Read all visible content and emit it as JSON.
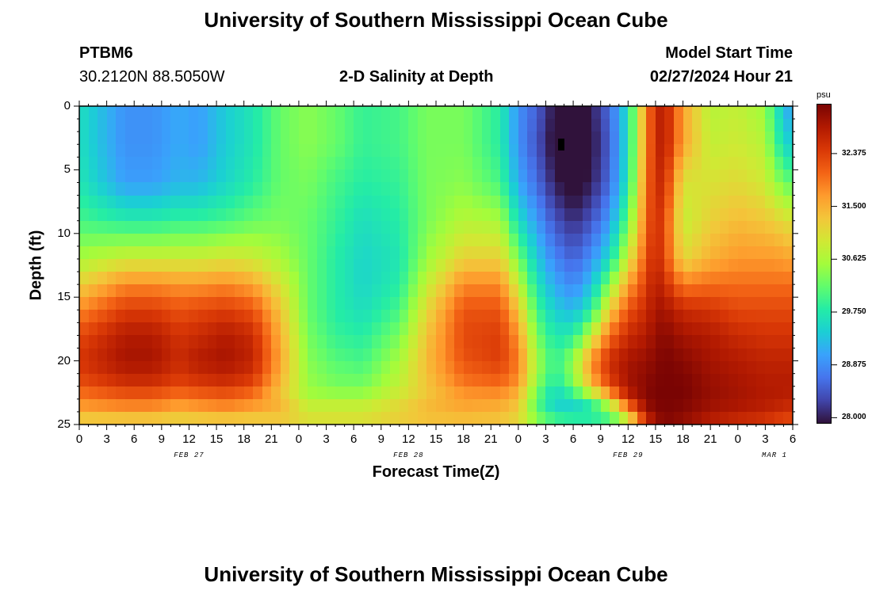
{
  "header": {
    "title_top": "University of Southern Mississippi Ocean Cube",
    "title_bottom": "University of Southern Mississippi Ocean Cube",
    "station_id": "PTBM6",
    "station_coords": "30.2120N  88.5050W",
    "plot_title": "2-D Salinity at Depth",
    "model_start_label": "Model Start Time",
    "model_start_value": "02/27/2024 Hour 21"
  },
  "chart_data": {
    "type": "heatmap",
    "title": "2-D Salinity at Depth",
    "xlabel": "Forecast Time(Z)",
    "ylabel": "Depth (ft)",
    "colorbar_unit": "psu",
    "x_range_hours": [
      0,
      78
    ],
    "y_range_ft": [
      0,
      25
    ],
    "y_ticks": [
      "0",
      "5",
      "10",
      "15",
      "20",
      "25"
    ],
    "x_tick_labels": [
      "0",
      "3",
      "6",
      "9",
      "12",
      "15",
      "18",
      "21",
      "0",
      "3",
      "6",
      "9",
      "12",
      "15",
      "18",
      "21",
      "0",
      "3",
      "6",
      "9",
      "12",
      "15",
      "18",
      "21",
      "0",
      "3",
      "6"
    ],
    "date_labels": [
      "FEB 27",
      "FEB 28",
      "FEB 29",
      "MAR 1"
    ],
    "date_label_hours": [
      12,
      36,
      60,
      76
    ],
    "colorbar_ticks": [
      "28.000",
      "28.875",
      "29.750",
      "30.625",
      "31.500",
      "32.375"
    ],
    "colorbar_tick_values": [
      28.0,
      28.875,
      29.75,
      30.625,
      31.5,
      32.375
    ],
    "colorbar_range": [
      27.9,
      33.2
    ],
    "colormap": [
      "#30123b",
      "#4145ab",
      "#4675ed",
      "#39a2fc",
      "#1bcfd4",
      "#24eca6",
      "#61fc6c",
      "#a4fc3b",
      "#d1e834",
      "#f3c63a",
      "#fe9b2d",
      "#f36315",
      "#d93806",
      "#b11901",
      "#7a0403"
    ],
    "grid_resolution": {
      "time_columns": 78,
      "depth_rows": 25
    },
    "profile_hours": [
      0,
      5,
      8,
      11,
      13,
      16,
      19,
      22,
      25,
      28,
      31,
      35,
      38,
      42,
      46,
      48,
      50,
      52,
      54,
      56,
      58,
      60,
      62,
      63,
      64,
      66,
      69,
      72,
      75,
      76,
      78
    ],
    "profile_depths_ft": [
      0,
      3,
      6,
      9,
      12,
      14,
      16,
      18,
      20,
      22,
      23,
      24,
      25
    ],
    "salinity_profiles_psu": [
      [
        29.6,
        29.6,
        29.7,
        30.0,
        30.6,
        31.2,
        31.8,
        32.3,
        32.5,
        32.2,
        31.8,
        31.6,
        31.0
      ],
      [
        28.9,
        28.9,
        29.0,
        29.8,
        30.9,
        31.8,
        32.4,
        32.8,
        32.9,
        32.5,
        32.0,
        31.7,
        31.0
      ],
      [
        28.9,
        28.9,
        29.0,
        29.8,
        30.9,
        31.8,
        32.4,
        32.8,
        32.9,
        32.5,
        32.0,
        31.7,
        31.0
      ],
      [
        29.1,
        29.1,
        29.2,
        29.9,
        30.9,
        31.7,
        32.2,
        32.5,
        32.6,
        32.3,
        31.8,
        31.5,
        31.0
      ],
      [
        29.0,
        29.0,
        29.2,
        29.9,
        30.9,
        31.7,
        32.3,
        32.6,
        32.8,
        32.4,
        31.9,
        31.6,
        31.0
      ],
      [
        29.4,
        29.4,
        29.5,
        30.0,
        31.0,
        31.8,
        32.4,
        32.8,
        32.9,
        32.5,
        32.0,
        31.7,
        31.0
      ],
      [
        29.7,
        29.7,
        29.8,
        30.2,
        30.9,
        31.6,
        32.2,
        32.6,
        32.7,
        32.3,
        31.8,
        31.6,
        31.0
      ],
      [
        30.2,
        30.2,
        30.2,
        30.3,
        30.6,
        31.0,
        31.3,
        31.5,
        31.6,
        31.4,
        31.3,
        31.6,
        31.0
      ],
      [
        30.4,
        30.4,
        30.3,
        30.2,
        30.2,
        30.2,
        30.2,
        30.3,
        30.4,
        30.5,
        30.6,
        31.0,
        31.0
      ],
      [
        30.2,
        30.2,
        30.0,
        29.9,
        29.8,
        29.8,
        29.8,
        29.9,
        30.1,
        30.3,
        30.6,
        31.0,
        31.0
      ],
      [
        29.9,
        29.9,
        29.8,
        29.6,
        29.5,
        29.5,
        29.6,
        29.8,
        30.0,
        30.3,
        30.6,
        31.0,
        31.0
      ],
      [
        30.0,
        30.0,
        29.9,
        29.8,
        29.7,
        29.8,
        30.0,
        30.3,
        30.6,
        30.8,
        31.0,
        31.2,
        31.2
      ],
      [
        30.3,
        30.3,
        30.3,
        30.3,
        30.5,
        30.8,
        31.1,
        31.3,
        31.4,
        31.3,
        31.3,
        31.5,
        31.2
      ],
      [
        30.3,
        30.3,
        30.4,
        30.7,
        31.2,
        31.8,
        32.2,
        32.3,
        32.2,
        31.9,
        31.6,
        31.6,
        31.2
      ],
      [
        29.8,
        29.8,
        30.0,
        30.6,
        31.2,
        31.8,
        32.2,
        32.4,
        32.4,
        32.0,
        31.6,
        31.5,
        31.2
      ],
      [
        28.9,
        28.9,
        29.1,
        29.6,
        30.3,
        30.8,
        31.3,
        31.7,
        31.9,
        31.7,
        31.3,
        31.3,
        31.0
      ],
      [
        28.5,
        28.4,
        28.6,
        29.0,
        29.4,
        29.7,
        30.0,
        30.3,
        30.6,
        30.4,
        30.1,
        30.2,
        30.5
      ],
      [
        27.9,
        27.8,
        28.0,
        28.4,
        28.8,
        29.1,
        29.4,
        29.7,
        29.9,
        29.7,
        29.4,
        29.6,
        30.2
      ],
      [
        27.6,
        27.5,
        27.7,
        28.1,
        28.5,
        28.8,
        29.2,
        29.8,
        30.5,
        30.3,
        29.6,
        29.4,
        30.2
      ],
      [
        28.0,
        27.9,
        28.0,
        28.4,
        28.9,
        29.3,
        29.8,
        30.8,
        31.8,
        31.4,
        30.2,
        29.5,
        30.1
      ],
      [
        28.6,
        28.5,
        28.6,
        29.0,
        29.6,
        30.4,
        31.2,
        32.0,
        32.6,
        32.3,
        31.2,
        30.2,
        30.0
      ],
      [
        29.6,
        29.6,
        29.7,
        30.2,
        30.9,
        31.6,
        32.2,
        32.6,
        32.9,
        32.9,
        32.6,
        31.5,
        30.6
      ],
      [
        31.8,
        31.8,
        31.9,
        32.0,
        32.2,
        32.4,
        32.6,
        32.8,
        33.0,
        33.1,
        33.1,
        32.9,
        32.4
      ],
      [
        32.6,
        32.6,
        32.6,
        32.6,
        32.7,
        32.8,
        32.9,
        33.0,
        33.1,
        33.2,
        33.2,
        33.1,
        32.9
      ],
      [
        32.8,
        32.8,
        32.6,
        32.3,
        32.3,
        32.6,
        32.9,
        33.1,
        33.2,
        33.2,
        33.2,
        33.2,
        33.1
      ],
      [
        31.6,
        31.6,
        31.0,
        30.8,
        31.1,
        31.9,
        32.6,
        32.9,
        33.1,
        33.2,
        33.2,
        33.1,
        33.0
      ],
      [
        30.7,
        30.8,
        31.0,
        31.2,
        31.5,
        32.0,
        32.5,
        32.8,
        32.9,
        33.0,
        33.0,
        32.9,
        32.7
      ],
      [
        30.8,
        30.9,
        31.1,
        31.4,
        31.7,
        32.0,
        32.3,
        32.6,
        32.8,
        32.9,
        32.9,
        32.8,
        32.5
      ],
      [
        30.5,
        30.7,
        30.9,
        31.3,
        31.7,
        32.0,
        32.3,
        32.5,
        32.7,
        32.8,
        32.8,
        32.7,
        32.4
      ],
      [
        29.8,
        30.0,
        30.5,
        31.2,
        31.7,
        32.0,
        32.3,
        32.5,
        32.7,
        32.8,
        32.8,
        32.6,
        32.3
      ],
      [
        28.9,
        29.3,
        30.1,
        31.0,
        31.6,
        32.0,
        32.3,
        32.5,
        32.7,
        32.8,
        32.7,
        32.5,
        32.2
      ]
    ]
  }
}
